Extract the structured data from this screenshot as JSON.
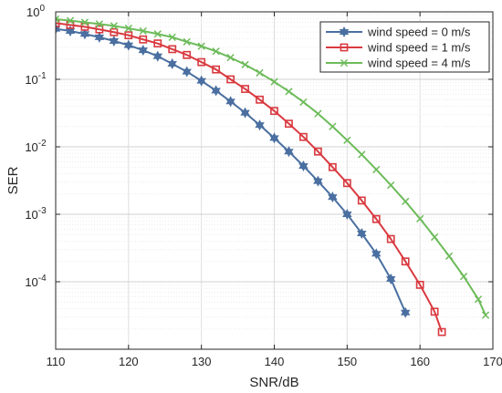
{
  "chart_data": {
    "type": "line",
    "title": "",
    "xlabel": "SNR/dB",
    "ylabel": "SER",
    "xlim": [
      110,
      170
    ],
    "ylim": [
      1e-05,
      1
    ],
    "yscale": "log",
    "grid": true,
    "legend_position": "top-right",
    "x_ticks": [
      "110",
      "120",
      "130",
      "140",
      "150",
      "160",
      "170"
    ],
    "y_ticks": [
      {
        "base": "10",
        "exp": "-4",
        "value": 0.0001
      },
      {
        "base": "10",
        "exp": "-3",
        "value": 0.001
      },
      {
        "base": "10",
        "exp": "-2",
        "value": 0.01
      },
      {
        "base": "10",
        "exp": "-1",
        "value": 0.1
      },
      {
        "base": "10",
        "exp": "0",
        "value": 1
      }
    ],
    "series": [
      {
        "name": "wind speed = 0 m/s",
        "color": "#4a6fa0",
        "marker": "hexagram",
        "points": [
          [
            110,
            0.56
          ],
          [
            112,
            0.52
          ],
          [
            114,
            0.47
          ],
          [
            116,
            0.42
          ],
          [
            118,
            0.37
          ],
          [
            120,
            0.32
          ],
          [
            122,
            0.27
          ],
          [
            124,
            0.22
          ],
          [
            126,
            0.17
          ],
          [
            128,
            0.13
          ],
          [
            130,
            0.095
          ],
          [
            132,
            0.068
          ],
          [
            134,
            0.047
          ],
          [
            136,
            0.032
          ],
          [
            138,
            0.021
          ],
          [
            140,
            0.0135
          ],
          [
            142,
            0.0085
          ],
          [
            144,
            0.0052
          ],
          [
            146,
            0.0031
          ],
          [
            148,
            0.0018
          ],
          [
            150,
            0.001
          ],
          [
            152,
            0.00052
          ],
          [
            154,
            0.00026
          ],
          [
            156,
            0.00011
          ],
          [
            158,
            3.5e-05
          ]
        ]
      },
      {
        "name": "wind speed = 1 m/s",
        "color": "#d93a40",
        "marker": "square",
        "points": [
          [
            110,
            0.68
          ],
          [
            112,
            0.64
          ],
          [
            114,
            0.6
          ],
          [
            116,
            0.55
          ],
          [
            118,
            0.5
          ],
          [
            120,
            0.45
          ],
          [
            122,
            0.39
          ],
          [
            124,
            0.34
          ],
          [
            126,
            0.28
          ],
          [
            128,
            0.23
          ],
          [
            130,
            0.18
          ],
          [
            132,
            0.14
          ],
          [
            134,
            0.1
          ],
          [
            136,
            0.072
          ],
          [
            138,
            0.05
          ],
          [
            140,
            0.034
          ],
          [
            142,
            0.022
          ],
          [
            144,
            0.014
          ],
          [
            146,
            0.0085
          ],
          [
            148,
            0.005
          ],
          [
            150,
            0.0029
          ],
          [
            152,
            0.0016
          ],
          [
            154,
            0.00085
          ],
          [
            156,
            0.00043
          ],
          [
            158,
            0.0002
          ],
          [
            160,
            9e-05
          ],
          [
            162,
            3.6e-05
          ],
          [
            163,
            1.8e-05
          ]
        ]
      },
      {
        "name": "wind speed = 4 m/s",
        "color": "#6dbb5a",
        "marker": "x",
        "points": [
          [
            110,
            0.78
          ],
          [
            112,
            0.74
          ],
          [
            114,
            0.7
          ],
          [
            116,
            0.66
          ],
          [
            118,
            0.62
          ],
          [
            120,
            0.57
          ],
          [
            122,
            0.52
          ],
          [
            124,
            0.47
          ],
          [
            126,
            0.42
          ],
          [
            128,
            0.36
          ],
          [
            130,
            0.31
          ],
          [
            132,
            0.26
          ],
          [
            134,
            0.21
          ],
          [
            136,
            0.165
          ],
          [
            138,
            0.125
          ],
          [
            140,
            0.092
          ],
          [
            142,
            0.066
          ],
          [
            144,
            0.046
          ],
          [
            146,
            0.031
          ],
          [
            148,
            0.02
          ],
          [
            150,
            0.0125
          ],
          [
            152,
            0.0077
          ],
          [
            154,
            0.0046
          ],
          [
            156,
            0.0027
          ],
          [
            158,
            0.00155
          ],
          [
            160,
            0.00086
          ],
          [
            162,
            0.00046
          ],
          [
            164,
            0.00024
          ],
          [
            166,
            0.00012
          ],
          [
            168,
            5.5e-05
          ],
          [
            169,
            3.2e-05
          ]
        ]
      }
    ]
  }
}
